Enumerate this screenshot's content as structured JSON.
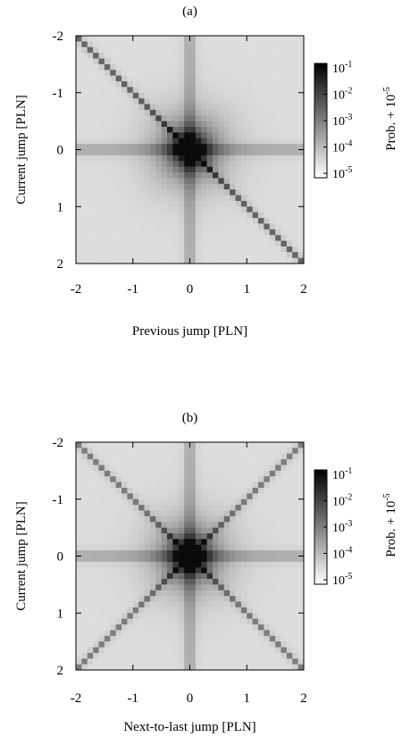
{
  "chart_data": [
    {
      "type": "heatmap",
      "panel_label": "(a)",
      "xlabel": "Previous jump [PLN]",
      "ylabel": "Current jump [PLN]",
      "xlim": [
        -2,
        2
      ],
      "ylim": [
        2,
        -2
      ],
      "x_ticks": [
        "-2",
        "-1",
        "0",
        "1",
        "2"
      ],
      "y_ticks": [
        "-2",
        "-1",
        "0",
        "1",
        "2"
      ],
      "grid_step": 0.1,
      "colorbar": {
        "label": "Prob. + 10",
        "label_exponent": "-5",
        "scale": "log",
        "range": [
          1e-05,
          0.1
        ],
        "ticks": [
          {
            "base": "10",
            "exp": "-1"
          },
          {
            "base": "10",
            "exp": "-2"
          },
          {
            "base": "10",
            "exp": "-3"
          },
          {
            "base": "10",
            "exp": "-4"
          },
          {
            "base": "10",
            "exp": "-5"
          }
        ]
      },
      "pattern": "diagonal y = x",
      "peak_probability": 0.1
    },
    {
      "type": "heatmap",
      "panel_label": "(b)",
      "xlabel": "Next-to-last jump [PLN]",
      "ylabel": "Current jump [PLN]",
      "xlim": [
        -2,
        2
      ],
      "ylim": [
        2,
        -2
      ],
      "x_ticks": [
        "-2",
        "-1",
        "0",
        "1",
        "2"
      ],
      "y_ticks": [
        "-2",
        "-1",
        "0",
        "1",
        "2"
      ],
      "grid_step": 0.1,
      "colorbar": {
        "label": "Prob. + 10",
        "label_exponent": "-5",
        "scale": "log",
        "range": [
          1e-05,
          0.1
        ],
        "ticks": [
          {
            "base": "10",
            "exp": "-1"
          },
          {
            "base": "10",
            "exp": "-2"
          },
          {
            "base": "10",
            "exp": "-3"
          },
          {
            "base": "10",
            "exp": "-4"
          },
          {
            "base": "10",
            "exp": "-5"
          }
        ]
      },
      "pattern": "both diagonals y = x and y = -x",
      "peak_probability": 0.1
    }
  ]
}
